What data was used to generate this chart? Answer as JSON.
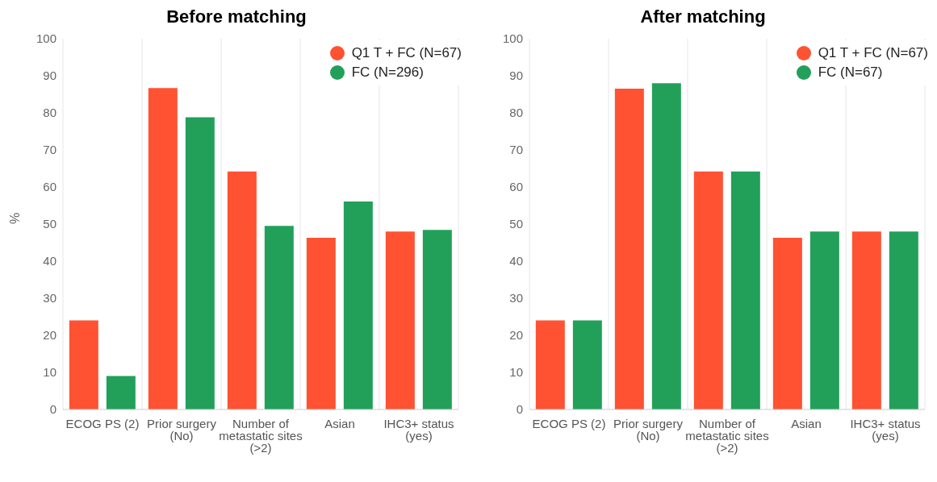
{
  "chart_data": [
    {
      "type": "bar",
      "title": "Before matching",
      "ylabel": "%",
      "categories": [
        "ECOG PS (2)",
        "Prior surgery (No)",
        "Number of metastatic sites (>2)",
        "Asian",
        "IHC3+ status (yes)"
      ],
      "series": [
        {
          "name": "Q1 T + FC (N=67)",
          "color": "#ff5233",
          "values": [
            24,
            86.7,
            64.2,
            46.3,
            48
          ]
        },
        {
          "name": "FC (N=296)",
          "color": "#22a05a",
          "values": [
            9,
            78.8,
            49.5,
            56.1,
            48.4
          ]
        }
      ],
      "ylim": [
        0,
        100
      ],
      "yticks": [
        0,
        10,
        20,
        30,
        40,
        50,
        60,
        70,
        80,
        90,
        100
      ],
      "grid": "x",
      "legend": "top right",
      "marker": "circle"
    },
    {
      "type": "bar",
      "title": "After matching",
      "categories": [
        "ECOG PS (2)",
        "Prior surgery (No)",
        "Number of metastatic sites (>2)",
        "Asian",
        "IHC3+ status (yes)"
      ],
      "series": [
        {
          "name": "Q1 T + FC (N=67)",
          "color": "#ff5233",
          "values": [
            24,
            86.5,
            64.2,
            46.3,
            48
          ]
        },
        {
          "name": "FC (N=67)",
          "color": "#22a05a",
          "values": [
            24,
            88,
            64.2,
            48,
            48
          ]
        }
      ],
      "ylim": [
        0,
        100
      ],
      "yticks": [
        0,
        10,
        20,
        30,
        40,
        50,
        60,
        70,
        80,
        90,
        100
      ],
      "grid": "x",
      "legend": "top right",
      "marker": "circle"
    }
  ]
}
